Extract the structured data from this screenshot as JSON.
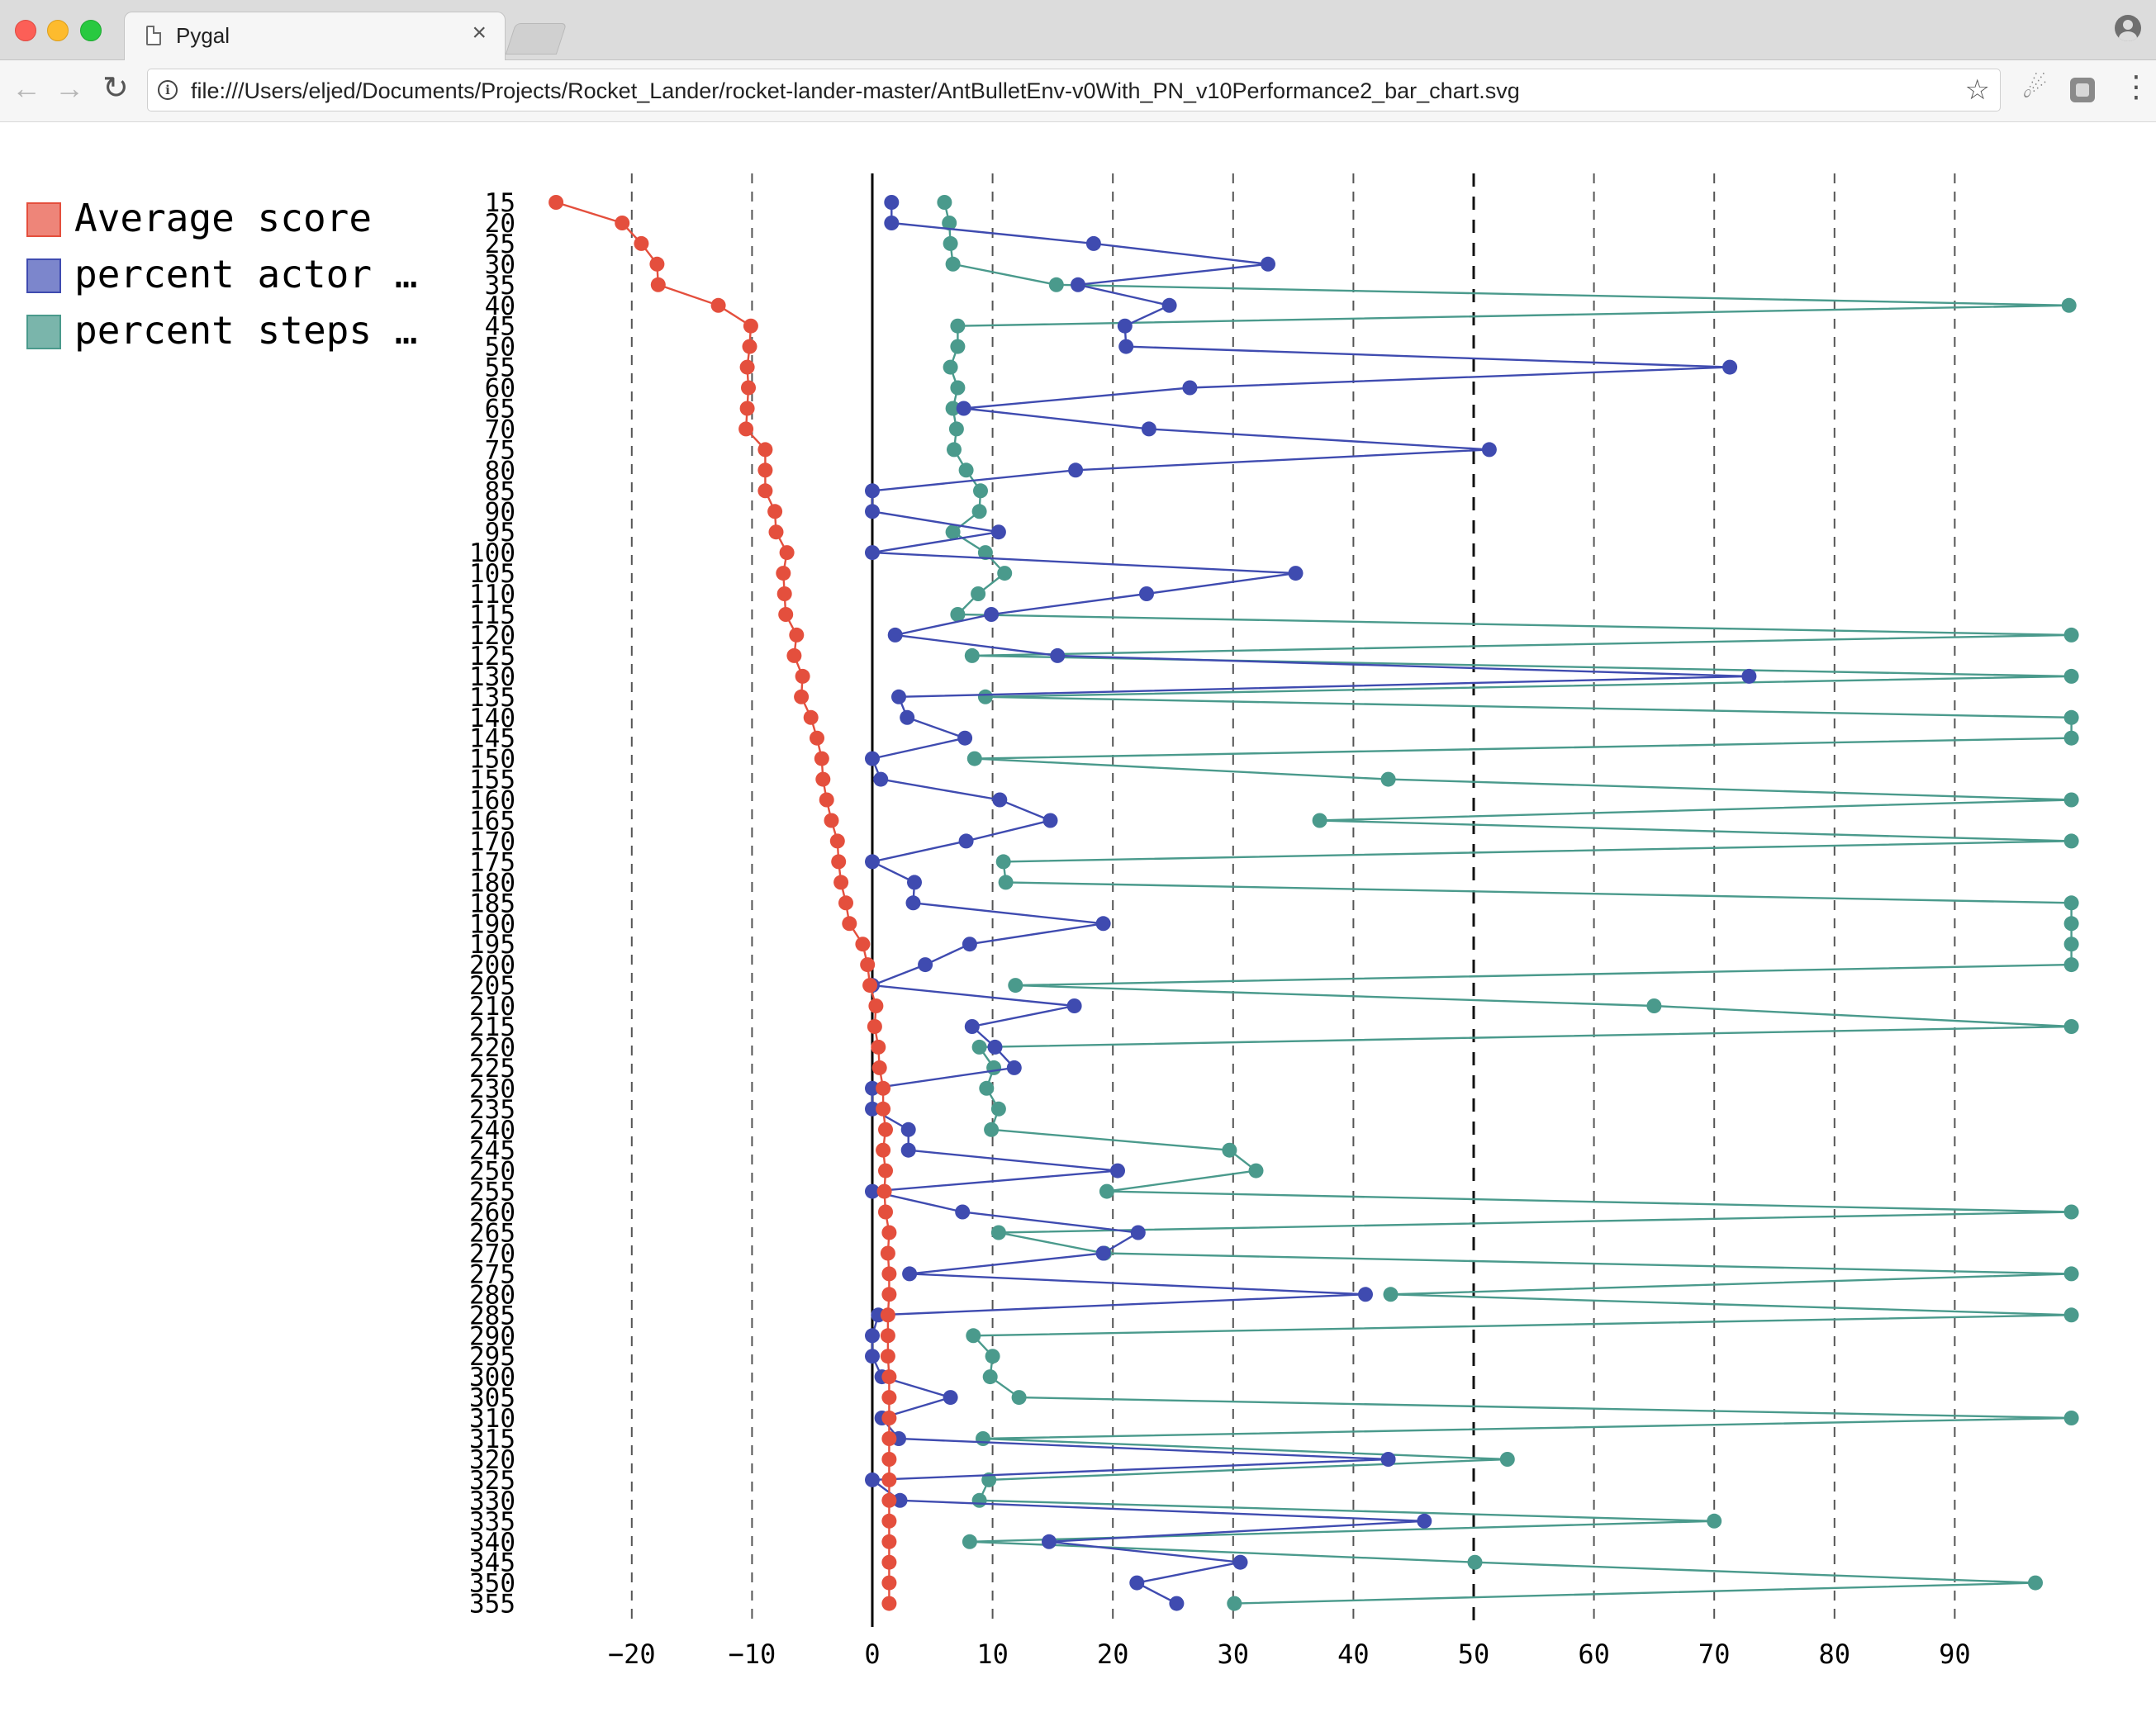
{
  "browser": {
    "tab_title": "Pygal",
    "tab_close": "×",
    "url": "file:///Users/eljed/Documents/Projects/Rocket_Lander/rocket-lander-master/AntBulletEnv-v0With_PN_v10Performance2_bar_chart.svg",
    "icons": [
      "page-icon",
      "close-icon",
      "back-icon",
      "forward-icon",
      "reload-icon",
      "info-icon",
      "star-icon",
      "extension-icon",
      "menu-icon",
      "profile-icon"
    ]
  },
  "chart_data": {
    "type": "line",
    "orientation": "horizontal",
    "x_label_note": "",
    "xlim": [
      -26,
      100
    ],
    "x_ticks": [
      -20,
      -10,
      0,
      10,
      20,
      30,
      40,
      50,
      60,
      70,
      80,
      90
    ],
    "grid": "vertical dashed",
    "legend_position": "left",
    "categories": [
      "15",
      "20",
      "25",
      "30",
      "35",
      "40",
      "45",
      "50",
      "55",
      "60",
      "65",
      "70",
      "75",
      "80",
      "85",
      "90",
      "95",
      "100",
      "105",
      "110",
      "115",
      "120",
      "125",
      "130",
      "135",
      "140",
      "145",
      "150",
      "155",
      "160",
      "165",
      "170",
      "175",
      "180",
      "185",
      "190",
      "195",
      "200",
      "205",
      "210",
      "215",
      "220",
      "225",
      "230",
      "235",
      "240",
      "245",
      "250",
      "255",
      "260",
      "265",
      "270",
      "275",
      "280",
      "285",
      "290",
      "295",
      "300",
      "305",
      "310",
      "315",
      "320",
      "325",
      "330",
      "335",
      "340",
      "345",
      "350",
      "355"
    ],
    "series": [
      {
        "name": "Average score",
        "color": "#e44f3d",
        "legend_color": "#ee8579",
        "values": [
          -26.3,
          -20.8,
          -19.2,
          -17.9,
          -17.8,
          -12.8,
          -10.1,
          -10.2,
          -10.4,
          -10.3,
          -10.4,
          -10.5,
          -8.9,
          -8.9,
          -8.9,
          -8.1,
          -8.0,
          -7.1,
          -7.4,
          -7.3,
          -7.2,
          -6.3,
          -6.5,
          -5.8,
          -5.9,
          -5.1,
          -4.6,
          -4.2,
          -4.1,
          -3.8,
          -3.4,
          -2.9,
          -2.8,
          -2.6,
          -2.2,
          -1.9,
          -0.8,
          -0.4,
          -0.2,
          0.3,
          0.2,
          0.5,
          0.6,
          0.9,
          0.9,
          1.1,
          0.9,
          1.1,
          1.0,
          1.1,
          1.4,
          1.3,
          1.4,
          1.4,
          1.3,
          1.3,
          1.3,
          1.4,
          1.4,
          1.4,
          1.4,
          1.4,
          1.4,
          1.4,
          1.4,
          1.4,
          1.4,
          1.4,
          1.4
        ]
      },
      {
        "name": "percent actor …",
        "color": "#3f4bb0",
        "legend_color": "#7c86cc",
        "values": [
          1.6,
          1.6,
          18.4,
          32.9,
          17.1,
          24.7,
          21.0,
          21.1,
          71.3,
          26.4,
          7.6,
          23.0,
          51.3,
          16.9,
          0.0,
          0.0,
          10.5,
          0.0,
          35.2,
          22.8,
          9.9,
          1.9,
          15.4,
          72.9,
          2.2,
          2.9,
          7.7,
          0.0,
          0.7,
          10.6,
          14.8,
          7.8,
          0.0,
          3.5,
          3.4,
          19.2,
          8.1,
          4.4,
          0.0,
          16.8,
          8.3,
          10.2,
          11.8,
          0.0,
          0.0,
          3.0,
          3.0,
          20.4,
          0.0,
          7.5,
          22.1,
          19.2,
          3.1,
          41.0,
          0.5,
          0.0,
          0.0,
          0.8,
          6.5,
          0.8,
          2.2,
          42.9,
          0.0,
          2.3,
          45.9,
          14.7,
          30.6,
          22.0,
          25.3
        ]
      },
      {
        "name": "percent steps …",
        "color": "#4a9a8c",
        "legend_color": "#7ab5ab",
        "values": [
          6.0,
          6.4,
          6.5,
          6.7,
          15.3,
          99.5,
          7.1,
          7.1,
          6.5,
          7.1,
          6.7,
          7.0,
          6.8,
          7.8,
          9.0,
          8.9,
          6.7,
          9.4,
          11.0,
          8.8,
          7.1,
          99.7,
          8.3,
          99.7,
          9.4,
          99.7,
          99.7,
          8.5,
          42.9,
          99.7,
          37.2,
          99.7,
          10.9,
          11.1,
          99.7,
          99.7,
          99.7,
          99.7,
          11.9,
          65.0,
          99.7,
          8.9,
          10.1,
          9.5,
          10.5,
          9.9,
          29.7,
          31.9,
          19.5,
          99.7,
          10.5,
          19.3,
          99.7,
          43.1,
          99.7,
          8.4,
          10.0,
          9.8,
          12.2,
          99.7,
          9.2,
          52.8,
          9.7,
          8.9,
          70.0,
          8.1,
          50.1,
          96.7,
          30.1
        ]
      }
    ]
  }
}
